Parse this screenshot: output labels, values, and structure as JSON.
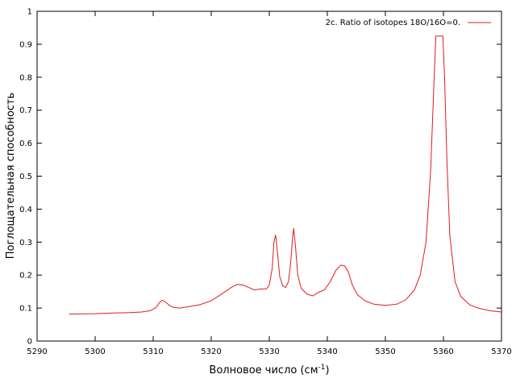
{
  "chart_data": {
    "type": "line",
    "xlabel": "Волновое число (см",
    "xlabel_sup": "-1",
    "xlabel_end": ")",
    "ylabel": "Поглощательная способность",
    "xlim": [
      5290,
      5370
    ],
    "ylim": [
      0,
      1
    ],
    "x_ticks": [
      "5290",
      "5300",
      "5310",
      "5320",
      "5330",
      "5340",
      "5350",
      "5360",
      "5370"
    ],
    "y_ticks": [
      "0",
      "0.1",
      "0.2",
      "0.3",
      "0.4",
      "0.5",
      "0.6",
      "0.7",
      "0.8",
      "0.9",
      "1"
    ],
    "legend_position": "top-right",
    "grid": false,
    "series": [
      {
        "name": "2c. Ratio of isotopes 18O/16O=0.",
        "color": "#e41a1c",
        "x": [
          5295.5,
          5300,
          5303,
          5306,
          5308,
          5309.5,
          5310.5,
          5311,
          5311.5,
          5312,
          5312.8,
          5313.5,
          5314.5,
          5316,
          5318,
          5320,
          5322,
          5323.5,
          5324.5,
          5325.5,
          5326.5,
          5327.5,
          5328.5,
          5329.5,
          5330,
          5330.5,
          5330.8,
          5331.1,
          5331.4,
          5331.8,
          5332.3,
          5332.8,
          5333.3,
          5333.7,
          5334.0,
          5334.2,
          5334.5,
          5334.9,
          5335.5,
          5336.5,
          5337.5,
          5338.5,
          5339.5,
          5340.5,
          5341.5,
          5342.3,
          5343.0,
          5343.6,
          5344.3,
          5345.2,
          5346.5,
          5348,
          5349,
          5350,
          5352,
          5353.5,
          5355,
          5356,
          5357,
          5357.8,
          5358.4,
          5358.7,
          5359.0,
          5359.5,
          5359.9,
          5360.2,
          5360.6,
          5361.1,
          5362,
          5363,
          5364.5,
          5366,
          5368,
          5370
        ],
        "values": [
          0.082,
          0.083,
          0.085,
          0.086,
          0.088,
          0.092,
          0.102,
          0.115,
          0.124,
          0.12,
          0.108,
          0.102,
          0.1,
          0.104,
          0.11,
          0.122,
          0.145,
          0.163,
          0.172,
          0.17,
          0.162,
          0.155,
          0.158,
          0.158,
          0.17,
          0.22,
          0.3,
          0.322,
          0.27,
          0.195,
          0.168,
          0.162,
          0.18,
          0.24,
          0.31,
          0.342,
          0.29,
          0.2,
          0.16,
          0.142,
          0.137,
          0.148,
          0.155,
          0.18,
          0.215,
          0.23,
          0.228,
          0.21,
          0.17,
          0.14,
          0.122,
          0.112,
          0.11,
          0.108,
          0.112,
          0.125,
          0.155,
          0.2,
          0.3,
          0.52,
          0.8,
          0.925,
          0.925,
          0.925,
          0.925,
          0.8,
          0.55,
          0.32,
          0.18,
          0.135,
          0.11,
          0.1,
          0.092,
          0.088
        ]
      }
    ]
  }
}
